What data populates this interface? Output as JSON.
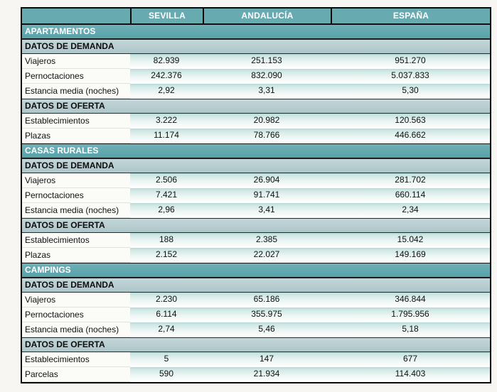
{
  "colors": {
    "header_teal": "#67aab0",
    "section_teal": "#5fa7ad",
    "group_gray_teal": "#b8ced1",
    "row_band_teal": "#cfe7e4",
    "page_background": "#f7f6f2",
    "border_black": "#0a0a0a"
  },
  "chart_data": {
    "type": "table",
    "title": "",
    "columns": [
      "SEVILLA",
      "ANDALUCÍA",
      "ESPAÑA"
    ],
    "sections": [
      {
        "title": "APARTAMENTOS",
        "groups": [
          {
            "title": "DATOS DE DEMANDA",
            "rows": [
              {
                "label": "Viajeros",
                "values": [
                  "82.939",
                  "251.153",
                  "951.270"
                ]
              },
              {
                "label": "Pernoctaciones",
                "values": [
                  "242.376",
                  "832.090",
                  "5.037.833"
                ]
              },
              {
                "label": "Estancia media (noches)",
                "values": [
                  "2,92",
                  "3,31",
                  "5,30"
                ]
              }
            ]
          },
          {
            "title": "DATOS DE OFERTA",
            "rows": [
              {
                "label": "Establecimientos",
                "values": [
                  "3.222",
                  "20.982",
                  "120.563"
                ]
              },
              {
                "label": "Plazas",
                "values": [
                  "11.174",
                  "78.766",
                  "446.662"
                ]
              }
            ]
          }
        ]
      },
      {
        "title": "CASAS RURALES",
        "groups": [
          {
            "title": "DATOS DE DEMANDA",
            "rows": [
              {
                "label": "Viajeros",
                "values": [
                  "2.506",
                  "26.904",
                  "281.702"
                ]
              },
              {
                "label": "Pernoctaciones",
                "values": [
                  "7.421",
                  "91.741",
                  "660.114"
                ]
              },
              {
                "label": "Estancia media (noches)",
                "values": [
                  "2,96",
                  "3,41",
                  "2,34"
                ]
              }
            ]
          },
          {
            "title": "DATOS DE OFERTA",
            "rows": [
              {
                "label": "Establecimientos",
                "values": [
                  "188",
                  "2.385",
                  "15.042"
                ]
              },
              {
                "label": "Plazas",
                "values": [
                  "2.152",
                  "22.027",
                  "149.169"
                ]
              }
            ]
          }
        ]
      },
      {
        "title": "CAMPINGS",
        "groups": [
          {
            "title": "DATOS DE DEMANDA",
            "rows": [
              {
                "label": "Viajeros",
                "values": [
                  "2.230",
                  "65.186",
                  "346.844"
                ]
              },
              {
                "label": "Pernoctaciones",
                "values": [
                  "6.114",
                  "355.975",
                  "1.795.956"
                ]
              },
              {
                "label": "Estancia media (noches)",
                "values": [
                  "2,74",
                  "5,46",
                  "5,18"
                ]
              }
            ]
          },
          {
            "title": "DATOS DE OFERTA",
            "rows": [
              {
                "label": "Establecimientos",
                "values": [
                  "5",
                  "147",
                  "677"
                ]
              },
              {
                "label": "Parcelas",
                "values": [
                  "590",
                  "21.934",
                  "114.403"
                ]
              }
            ]
          }
        ]
      }
    ]
  }
}
